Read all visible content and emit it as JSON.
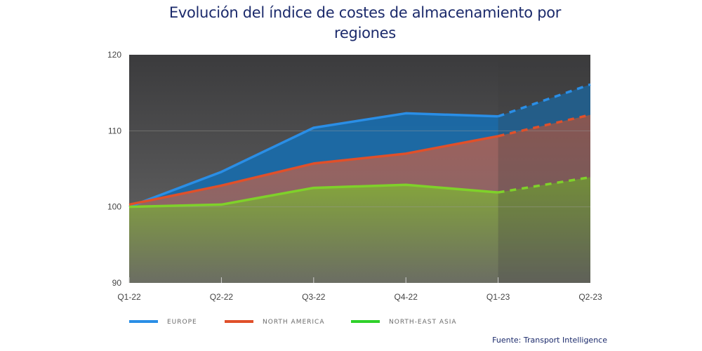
{
  "chart_data": {
    "type": "area",
    "title_line1": "Evolución del índice de costes de almacenamiento por",
    "title_line2": "regiones",
    "xlabel": "",
    "ylabel": "",
    "categories": [
      "Q1-22",
      "Q2-22",
      "Q3-22",
      "Q4-22",
      "Q1-23",
      "Q2-23"
    ],
    "forecast_from_index": 4,
    "ylim": [
      90,
      120
    ],
    "yticks": [
      90,
      100,
      110,
      120
    ],
    "ytick_labels": [
      "90",
      "100",
      "110",
      "120"
    ],
    "grid": true,
    "legend_position": "bottom-left",
    "series": [
      {
        "name": "EUROPE",
        "color": "#2a8ee6",
        "fill": "#1a6fb0",
        "values": [
          100.0,
          104.6,
          110.4,
          112.3,
          111.9,
          116.1
        ]
      },
      {
        "name": "NORTH AMERICA",
        "color": "#e0502a",
        "fill": "#9a6468",
        "values": [
          100.3,
          102.8,
          105.7,
          107.0,
          109.3,
          112.1
        ]
      },
      {
        "name": "NORTH-EAST ASIA",
        "color": "#7fd12a",
        "fill": "#7a9a40",
        "values": [
          100.0,
          100.3,
          102.5,
          102.9,
          101.9,
          103.9
        ]
      }
    ],
    "legend_colors": [
      "#2a8ee6",
      "#e0502a",
      "#2fd12a"
    ],
    "source": "Fuente: Transport Intelligence"
  }
}
